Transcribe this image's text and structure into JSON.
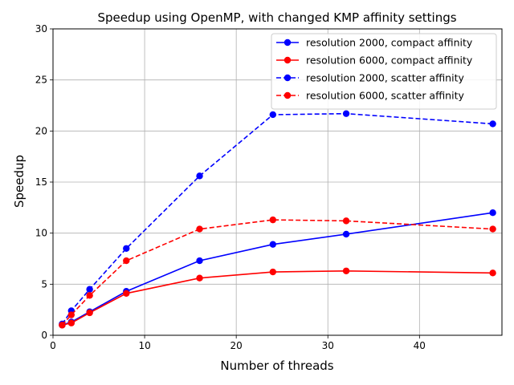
{
  "chart_data": {
    "type": "line",
    "title": "Speedup using OpenMP, with changed KMP affinity settings",
    "xlabel": "Number of threads",
    "ylabel": "Speedup",
    "xlim": [
      0,
      49
    ],
    "ylim": [
      0,
      30
    ],
    "xticks": [
      0,
      10,
      20,
      30,
      40
    ],
    "yticks": [
      0,
      5,
      10,
      15,
      20,
      25,
      30
    ],
    "grid": true,
    "legend_position": "top-right",
    "series": [
      {
        "name": "resolution 2000, compact affinity",
        "color": "#0000ff",
        "style": "solid",
        "x": [
          1,
          2,
          4,
          8,
          16,
          24,
          32,
          48
        ],
        "y": [
          1.0,
          1.3,
          2.3,
          4.3,
          7.3,
          8.9,
          9.9,
          12.0
        ]
      },
      {
        "name": "resolution 6000, compact affinity",
        "color": "#ff0000",
        "style": "solid",
        "x": [
          1,
          2,
          4,
          8,
          16,
          24,
          32,
          48
        ],
        "y": [
          1.0,
          1.2,
          2.2,
          4.1,
          5.6,
          6.2,
          6.3,
          6.1
        ]
      },
      {
        "name": "resolution 2000, scatter affinity",
        "color": "#0000ff",
        "style": "dashed",
        "x": [
          1,
          2,
          4,
          8,
          16,
          24,
          32,
          48
        ],
        "y": [
          1.1,
          2.4,
          4.5,
          8.5,
          15.6,
          21.6,
          21.7,
          20.7
        ]
      },
      {
        "name": "resolution 6000, scatter affinity",
        "color": "#ff0000",
        "style": "dashed",
        "x": [
          1,
          2,
          4,
          8,
          16,
          24,
          32,
          48
        ],
        "y": [
          1.0,
          2.0,
          3.9,
          7.3,
          10.4,
          11.3,
          11.2,
          10.4
        ]
      }
    ]
  }
}
